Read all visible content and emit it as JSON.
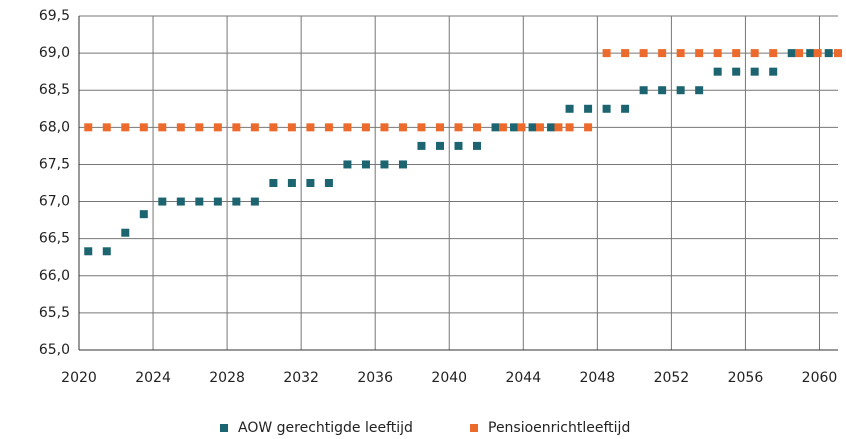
{
  "chart_data": {
    "type": "scatter",
    "series": [
      {
        "name": "AOW gerechtigde leeftijd",
        "color": "#1b6470",
        "x": [
          2020.5,
          2021.5,
          2022.5,
          2023.5,
          2024.5,
          2025.5,
          2026.5,
          2027.5,
          2028.5,
          2029.5,
          2030.5,
          2031.5,
          2032.5,
          2033.5,
          2034.5,
          2035.5,
          2036.5,
          2037.5,
          2038.5,
          2039.5,
          2040.5,
          2041.5,
          2042.5,
          2043.5,
          2044.5,
          2045.5,
          2046.5,
          2047.5,
          2048.5,
          2049.5,
          2050.5,
          2051.5,
          2052.5,
          2053.5,
          2054.5,
          2055.5,
          2056.5,
          2057.5,
          2058.5,
          2059.5,
          2060.5
        ],
        "values": [
          66.33,
          66.33,
          66.58,
          66.83,
          67,
          67,
          67,
          67,
          67,
          67,
          67.25,
          67.25,
          67.25,
          67.25,
          67.5,
          67.5,
          67.5,
          67.5,
          67.75,
          67.75,
          67.75,
          67.75,
          68,
          68,
          68,
          68,
          68.25,
          68.25,
          68.25,
          68.25,
          68.5,
          68.5,
          68.5,
          68.5,
          68.75,
          68.75,
          68.75,
          68.75,
          69,
          69,
          69
        ]
      },
      {
        "name": "Pensioenrichtleeftijd",
        "color": "#ec6a2c",
        "x": [
          2020.5,
          2021.5,
          2022.5,
          2023.5,
          2024.5,
          2025.5,
          2026.5,
          2027.5,
          2028.5,
          2029.5,
          2030.5,
          2031.5,
          2032.5,
          2033.5,
          2034.5,
          2035.5,
          2036.5,
          2037.5,
          2038.5,
          2039.5,
          2040.5,
          2041.5,
          2042.9,
          2043.9,
          2044.9,
          2045.9,
          2046.5,
          2047.5,
          2048.5,
          2049.5,
          2050.5,
          2051.5,
          2052.5,
          2053.5,
          2054.5,
          2055.5,
          2056.5,
          2057.5,
          2058.9,
          2059.9,
          2061
        ],
        "values": [
          68,
          68,
          68,
          68,
          68,
          68,
          68,
          68,
          68,
          68,
          68,
          68,
          68,
          68,
          68,
          68,
          68,
          68,
          68,
          68,
          68,
          68,
          68,
          68,
          68,
          68,
          68,
          68,
          69,
          69,
          69,
          69,
          69,
          69,
          69,
          69,
          69,
          69,
          69,
          69,
          69
        ]
      }
    ],
    "xlim": [
      2020,
      2061
    ],
    "xticks": [
      2020,
      2024,
      2028,
      2032,
      2036,
      2040,
      2044,
      2048,
      2052,
      2056,
      2060
    ],
    "ylim": [
      65,
      69.5
    ],
    "yticks": [
      {
        "value": 65,
        "label": "65,0"
      },
      {
        "value": 65.5,
        "label": "65,5"
      },
      {
        "value": 66,
        "label": "66,0"
      },
      {
        "value": 66.5,
        "label": "66,5"
      },
      {
        "value": 67,
        "label": "67,0"
      },
      {
        "value": 67.5,
        "label": "67,5"
      },
      {
        "value": 68,
        "label": "68,0"
      },
      {
        "value": 68.5,
        "label": "68,5"
      },
      {
        "value": 69,
        "label": "69,0"
      },
      {
        "value": 69.5,
        "label": "69,5"
      }
    ],
    "grid": true,
    "legend": "bottom"
  }
}
